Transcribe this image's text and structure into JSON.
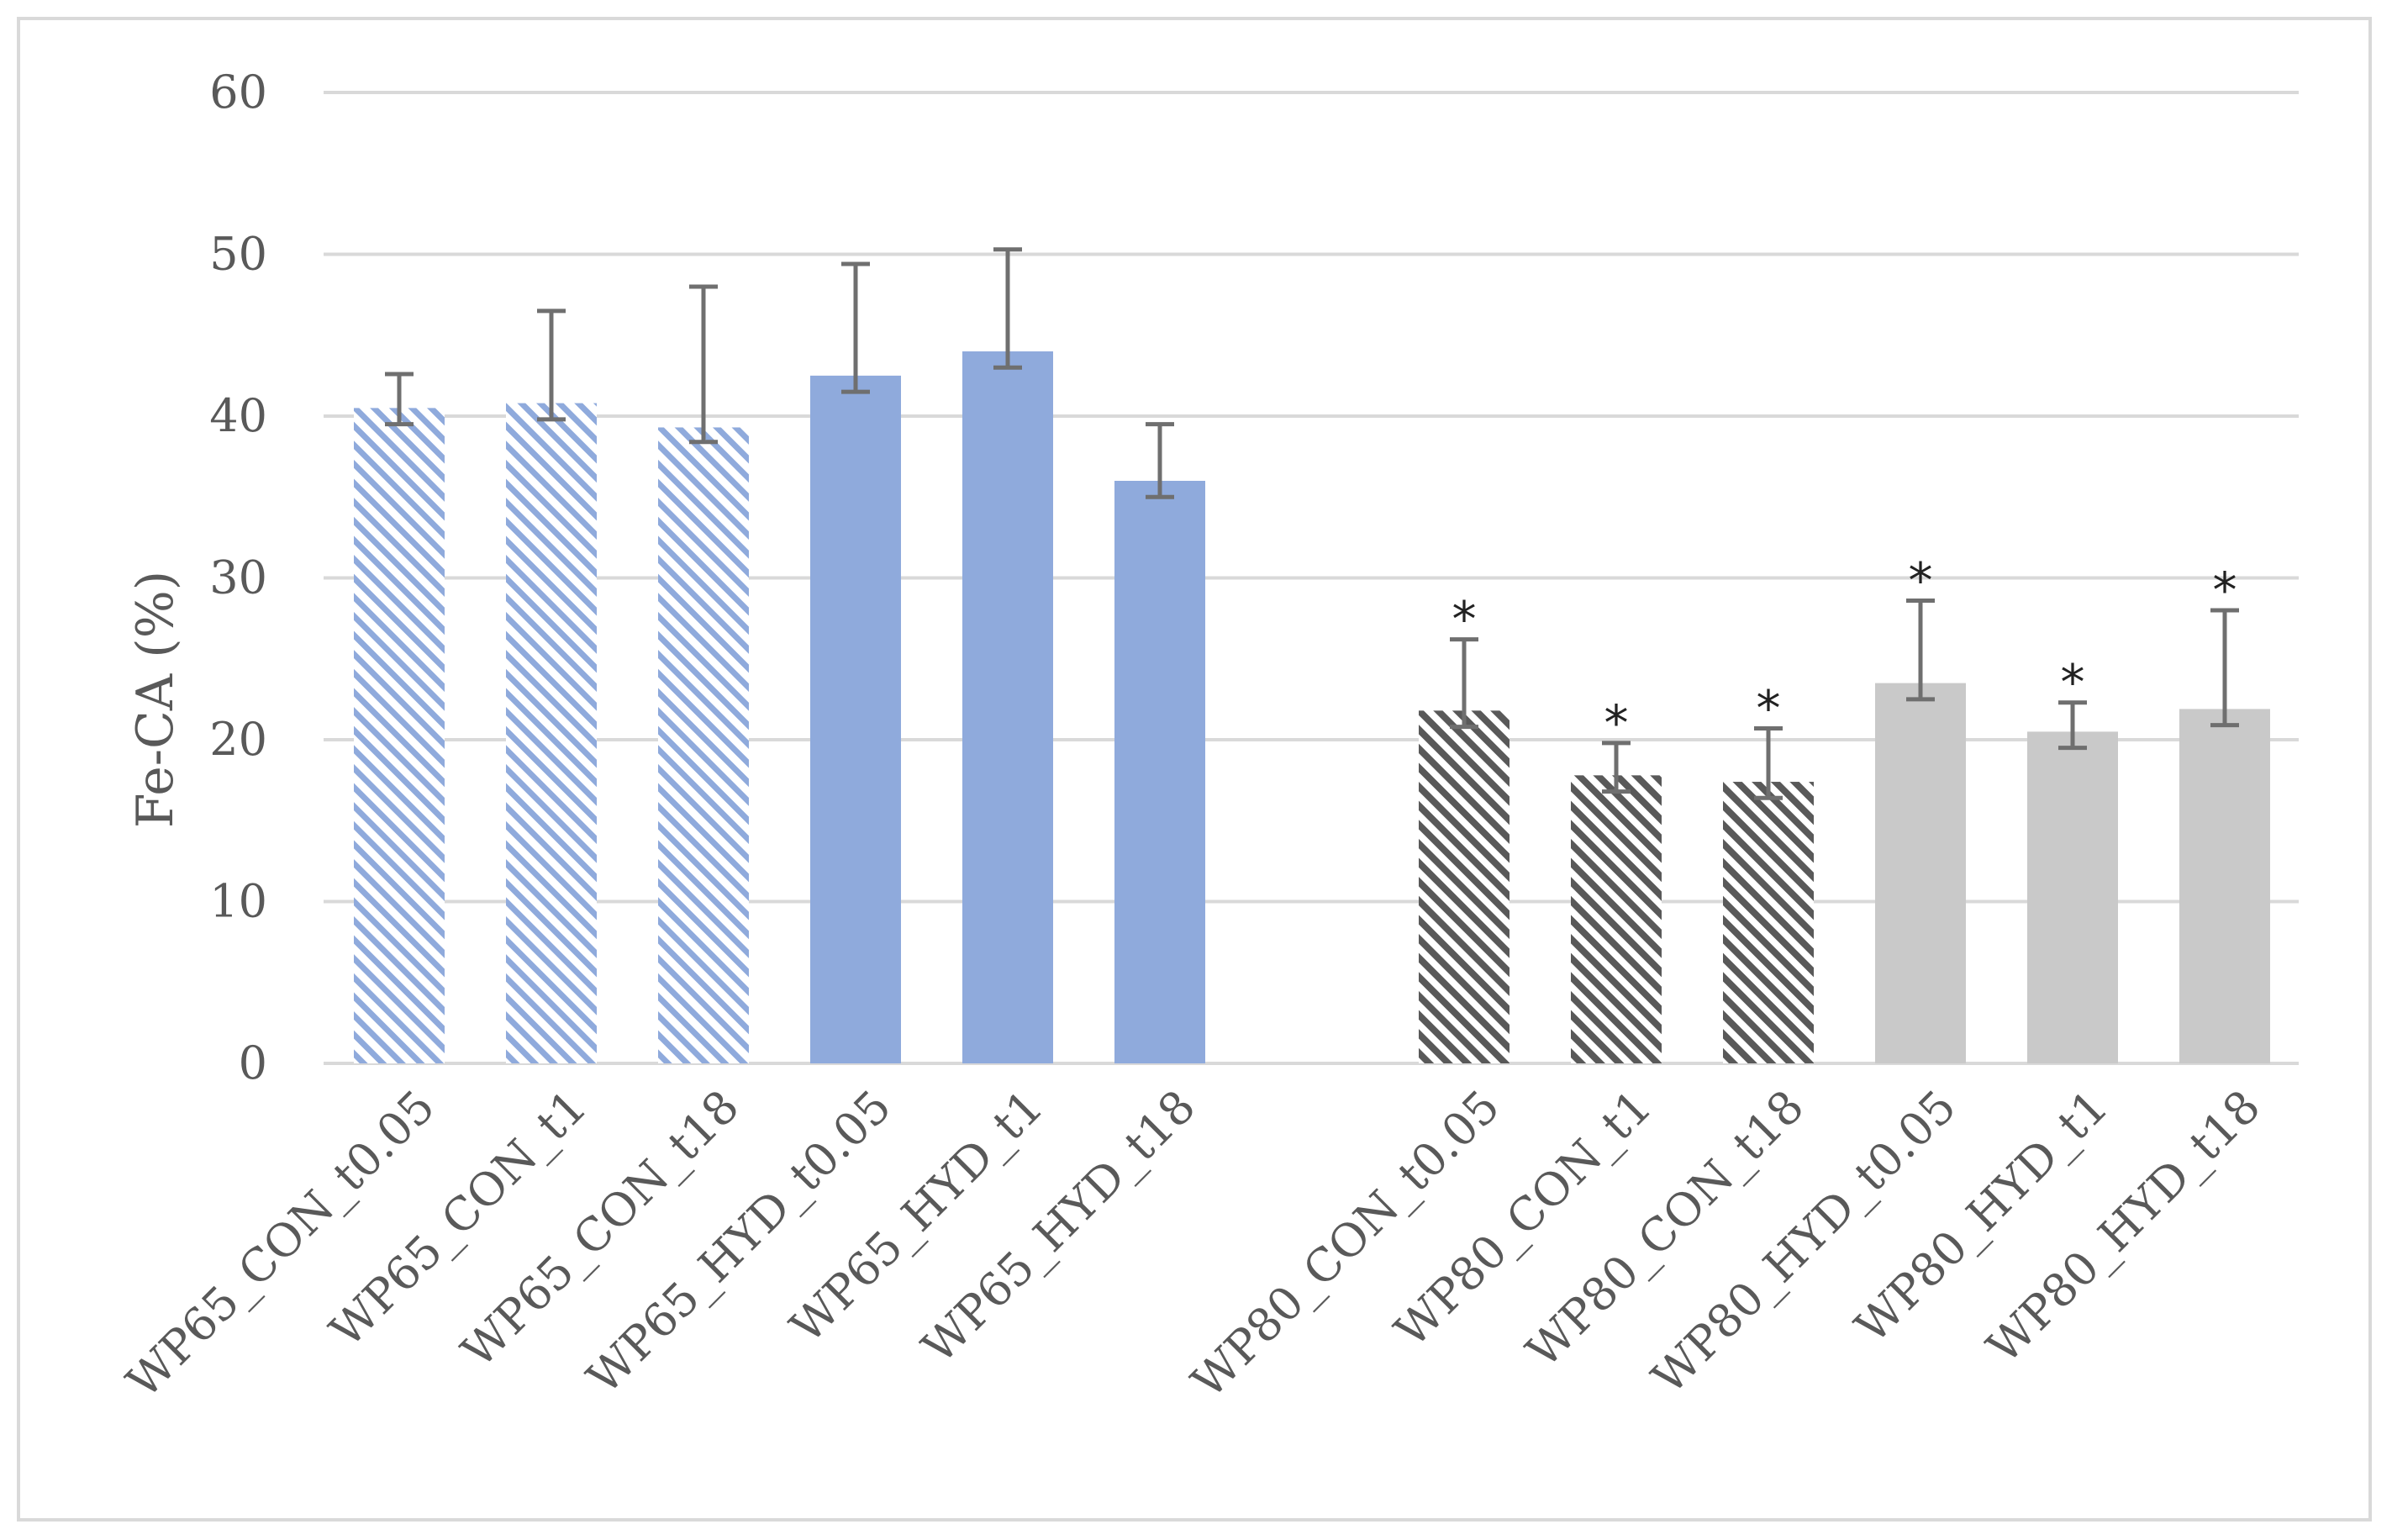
{
  "chart_data": {
    "type": "bar",
    "title": "",
    "xlabel": "",
    "ylabel": "Fe-CA (%)",
    "ylim": [
      0,
      60
    ],
    "yticks": [
      0,
      10,
      20,
      30,
      40,
      50,
      60
    ],
    "grid": true,
    "legend": "none",
    "categories": [
      "WP65_CON_t0.05",
      "WP65_CON_t1",
      "WP65_CON_t18",
      "WP65_HYD_t0.05",
      "WP65_HYD_t1",
      "WP65_HYD_t18",
      "WP80_CON_t0.05",
      "WP80_CON_t1",
      "WP80_CON_t18",
      "WP80_HYD_t0.05",
      "WP80_HYD_t1",
      "WP80_HYD_t18"
    ],
    "values": [
      40.5,
      40.8,
      39.3,
      42.5,
      44.0,
      36.0,
      21.8,
      17.8,
      17.4,
      23.5,
      20.5,
      21.9
    ],
    "error_upper": [
      42.6,
      46.5,
      48.0,
      49.4,
      50.3,
      39.5,
      26.2,
      19.8,
      20.7,
      28.6,
      22.3,
      28.0
    ],
    "error_lower": [
      39.5,
      39.8,
      38.4,
      41.5,
      43.0,
      35.0,
      20.8,
      16.8,
      16.4,
      22.5,
      19.5,
      20.9
    ],
    "significance": [
      "",
      "",
      "",
      "",
      "",
      "",
      "*",
      "*",
      "*",
      "*",
      "*",
      "*"
    ],
    "styles": [
      "blue-hatched",
      "blue-hatched",
      "blue-hatched",
      "blue-solid",
      "blue-solid",
      "blue-solid",
      "gray-hatched",
      "gray-hatched",
      "gray-hatched",
      "gray-solid",
      "gray-solid",
      "gray-solid"
    ],
    "colors": {
      "blue": "#8faadc",
      "dark_gray_hatch": "#595959",
      "light_gray": "#c9c9c9",
      "error_bar": "#6f6f6f",
      "grid": "#d9d9d9",
      "text": "#595959"
    }
  }
}
